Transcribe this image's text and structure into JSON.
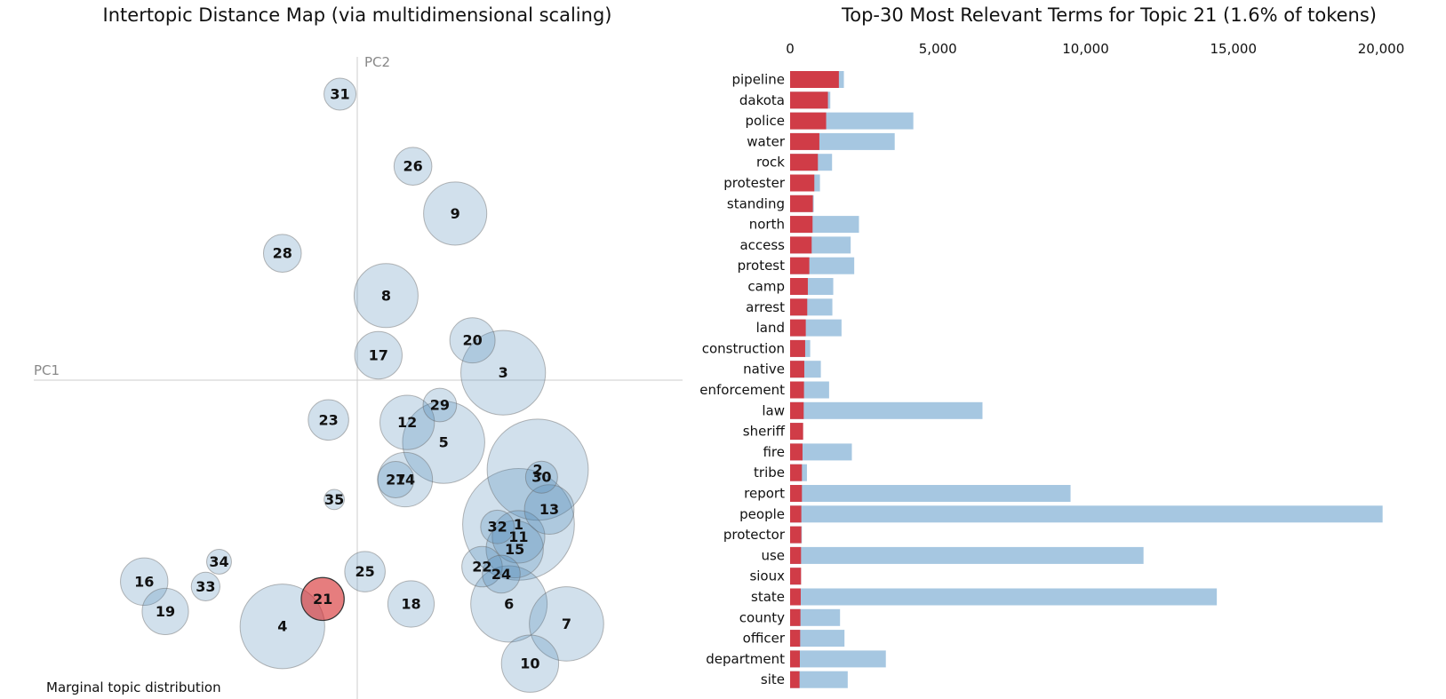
{
  "chart_data": [
    {
      "type": "scatter",
      "title": "Intertopic Distance Map (via multidimensional scaling)",
      "xlabel": "PC1",
      "ylabel": "PC2",
      "footer": "Marginal topic distribution",
      "selected_topic": "21",
      "topics": [
        {
          "label": "31",
          "x": -0.09,
          "y": 1.15,
          "size": 1.0
        },
        {
          "label": "26",
          "x": 0.29,
          "y": 0.86,
          "size": 1.4
        },
        {
          "label": "9",
          "x": 0.51,
          "y": 0.67,
          "size": 3.9
        },
        {
          "label": "28",
          "x": -0.39,
          "y": 0.51,
          "size": 1.4
        },
        {
          "label": "8",
          "x": 0.15,
          "y": 0.34,
          "size": 4.0
        },
        {
          "label": "20",
          "x": 0.6,
          "y": 0.16,
          "size": 2.0
        },
        {
          "label": "3",
          "x": 0.76,
          "y": 0.03,
          "size": 7.0
        },
        {
          "label": "17",
          "x": 0.11,
          "y": 0.1,
          "size": 2.2
        },
        {
          "label": "23",
          "x": -0.15,
          "y": -0.16,
          "size": 1.6
        },
        {
          "label": "12",
          "x": 0.26,
          "y": -0.17,
          "size": 2.9
        },
        {
          "label": "29",
          "x": 0.43,
          "y": -0.1,
          "size": 1.1
        },
        {
          "label": "5",
          "x": 0.45,
          "y": -0.25,
          "size": 6.6
        },
        {
          "label": "2",
          "x": 0.94,
          "y": -0.36,
          "size": 10.0
        },
        {
          "label": "30",
          "x": 0.96,
          "y": -0.39,
          "size": 1.0
        },
        {
          "label": "27",
          "x": 0.2,
          "y": -0.4,
          "size": 1.3
        },
        {
          "label": "14",
          "x": 0.25,
          "y": -0.4,
          "size": 2.9
        },
        {
          "label": "13",
          "x": 1.0,
          "y": -0.52,
          "size": 2.4
        },
        {
          "label": "35",
          "x": -0.12,
          "y": -0.48,
          "size": 0.4
        },
        {
          "label": "32",
          "x": 0.73,
          "y": -0.59,
          "size": 1.1
        },
        {
          "label": "1",
          "x": 0.84,
          "y": -0.58,
          "size": 12.2
        },
        {
          "label": "11",
          "x": 0.84,
          "y": -0.63,
          "size": 2.7
        },
        {
          "label": "15",
          "x": 0.82,
          "y": -0.68,
          "size": 3.2
        },
        {
          "label": "34",
          "x": -0.72,
          "y": -0.73,
          "size": 0.6
        },
        {
          "label": "16",
          "x": -1.11,
          "y": -0.81,
          "size": 2.2
        },
        {
          "label": "33",
          "x": -0.79,
          "y": -0.83,
          "size": 0.8
        },
        {
          "label": "22",
          "x": 0.65,
          "y": -0.75,
          "size": 1.6
        },
        {
          "label": "24",
          "x": 0.75,
          "y": -0.78,
          "size": 1.4
        },
        {
          "label": "25",
          "x": 0.04,
          "y": -0.77,
          "size": 1.6
        },
        {
          "label": "19",
          "x": -1.0,
          "y": -0.93,
          "size": 2.1
        },
        {
          "label": "21",
          "x": -0.18,
          "y": -0.88,
          "size": 1.8
        },
        {
          "label": "18",
          "x": 0.28,
          "y": -0.9,
          "size": 2.1
        },
        {
          "label": "6",
          "x": 0.79,
          "y": -0.9,
          "size": 5.7
        },
        {
          "label": "4",
          "x": -0.39,
          "y": -0.99,
          "size": 7.0
        },
        {
          "label": "7",
          "x": 1.09,
          "y": -0.98,
          "size": 5.4
        },
        {
          "label": "10",
          "x": 0.9,
          "y": -1.14,
          "size": 3.2
        }
      ]
    },
    {
      "type": "bar",
      "title": "Top-30 Most Relevant Terms for Topic 21 (1.6% of tokens)",
      "xlim": [
        0,
        20000
      ],
      "xticks": [
        "0",
        "5,000",
        "10,000",
        "15,000",
        "20,000"
      ],
      "xtick_values": [
        0,
        5000,
        10000,
        15000,
        20000
      ],
      "colors": {
        "topic": "#d03c47",
        "overall": "#a6c7e1"
      },
      "categories": [
        "pipeline",
        "dakota",
        "police",
        "water",
        "rock",
        "protester",
        "standing",
        "north",
        "access",
        "protest",
        "camp",
        "arrest",
        "land",
        "construction",
        "native",
        "enforcement",
        "law",
        "sheriff",
        "fire",
        "tribe",
        "report",
        "people",
        "protector",
        "use",
        "sioux",
        "state",
        "county",
        "officer",
        "department",
        "site"
      ],
      "series": [
        {
          "role": "topic",
          "values": [
            1650,
            1280,
            1220,
            990,
            940,
            820,
            770,
            760,
            730,
            650,
            600,
            580,
            530,
            510,
            480,
            470,
            460,
            440,
            420,
            400,
            400,
            380,
            380,
            370,
            370,
            360,
            350,
            340,
            330,
            320
          ]
        },
        {
          "role": "overall",
          "values": [
            1820,
            1360,
            4170,
            3540,
            1420,
            1010,
            800,
            2330,
            2050,
            2170,
            1460,
            1430,
            1740,
            680,
            1040,
            1320,
            6510,
            440,
            2090,
            570,
            9490,
            20050,
            400,
            11960,
            370,
            14440,
            1690,
            1840,
            3240,
            1950
          ]
        }
      ]
    }
  ]
}
